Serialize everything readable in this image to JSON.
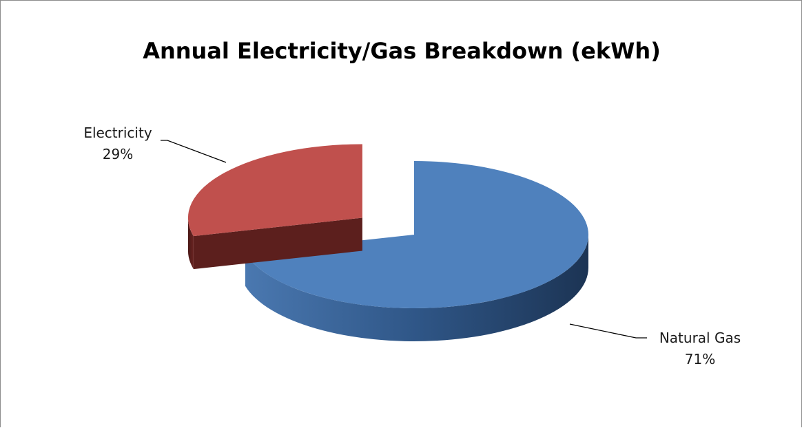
{
  "chart_data": {
    "type": "pie",
    "title": "Annual Electricity/Gas Breakdown (ekWh)",
    "slices": [
      {
        "name": "Natural Gas",
        "value": 71,
        "label": "71%",
        "color": "#4f81bd",
        "side_color": "#2c4d75"
      },
      {
        "name": "Electricity",
        "value": 29,
        "label": "29%",
        "color": "#c0504d",
        "side_color": "#5c1f1d",
        "exploded": true
      }
    ],
    "style": "3d",
    "legend": "none"
  }
}
